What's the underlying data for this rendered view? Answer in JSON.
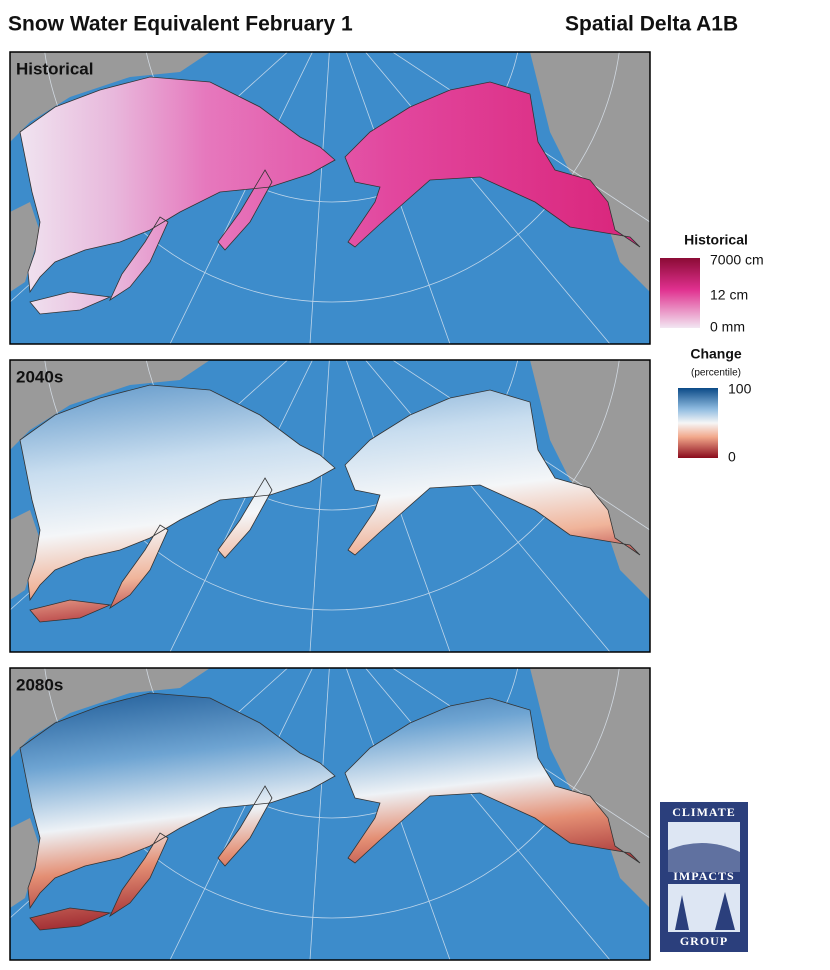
{
  "header": {
    "title": "Snow Water Equivalent February 1",
    "subtitle": "Spatial Delta A1B"
  },
  "panels": [
    {
      "label": "Historical"
    },
    {
      "label": "2040s"
    },
    {
      "label": "2080s"
    }
  ],
  "legends": [
    {
      "title": "Historical",
      "labels": [
        "7000 cm",
        "12 cm",
        "0 mm"
      ]
    },
    {
      "title": "Change",
      "subtitle": "(percentile)",
      "labels": [
        "100",
        "0"
      ]
    }
  ],
  "logo": {
    "lines": [
      "CLIMATE",
      "IMPACTS",
      "GROUP"
    ]
  }
}
